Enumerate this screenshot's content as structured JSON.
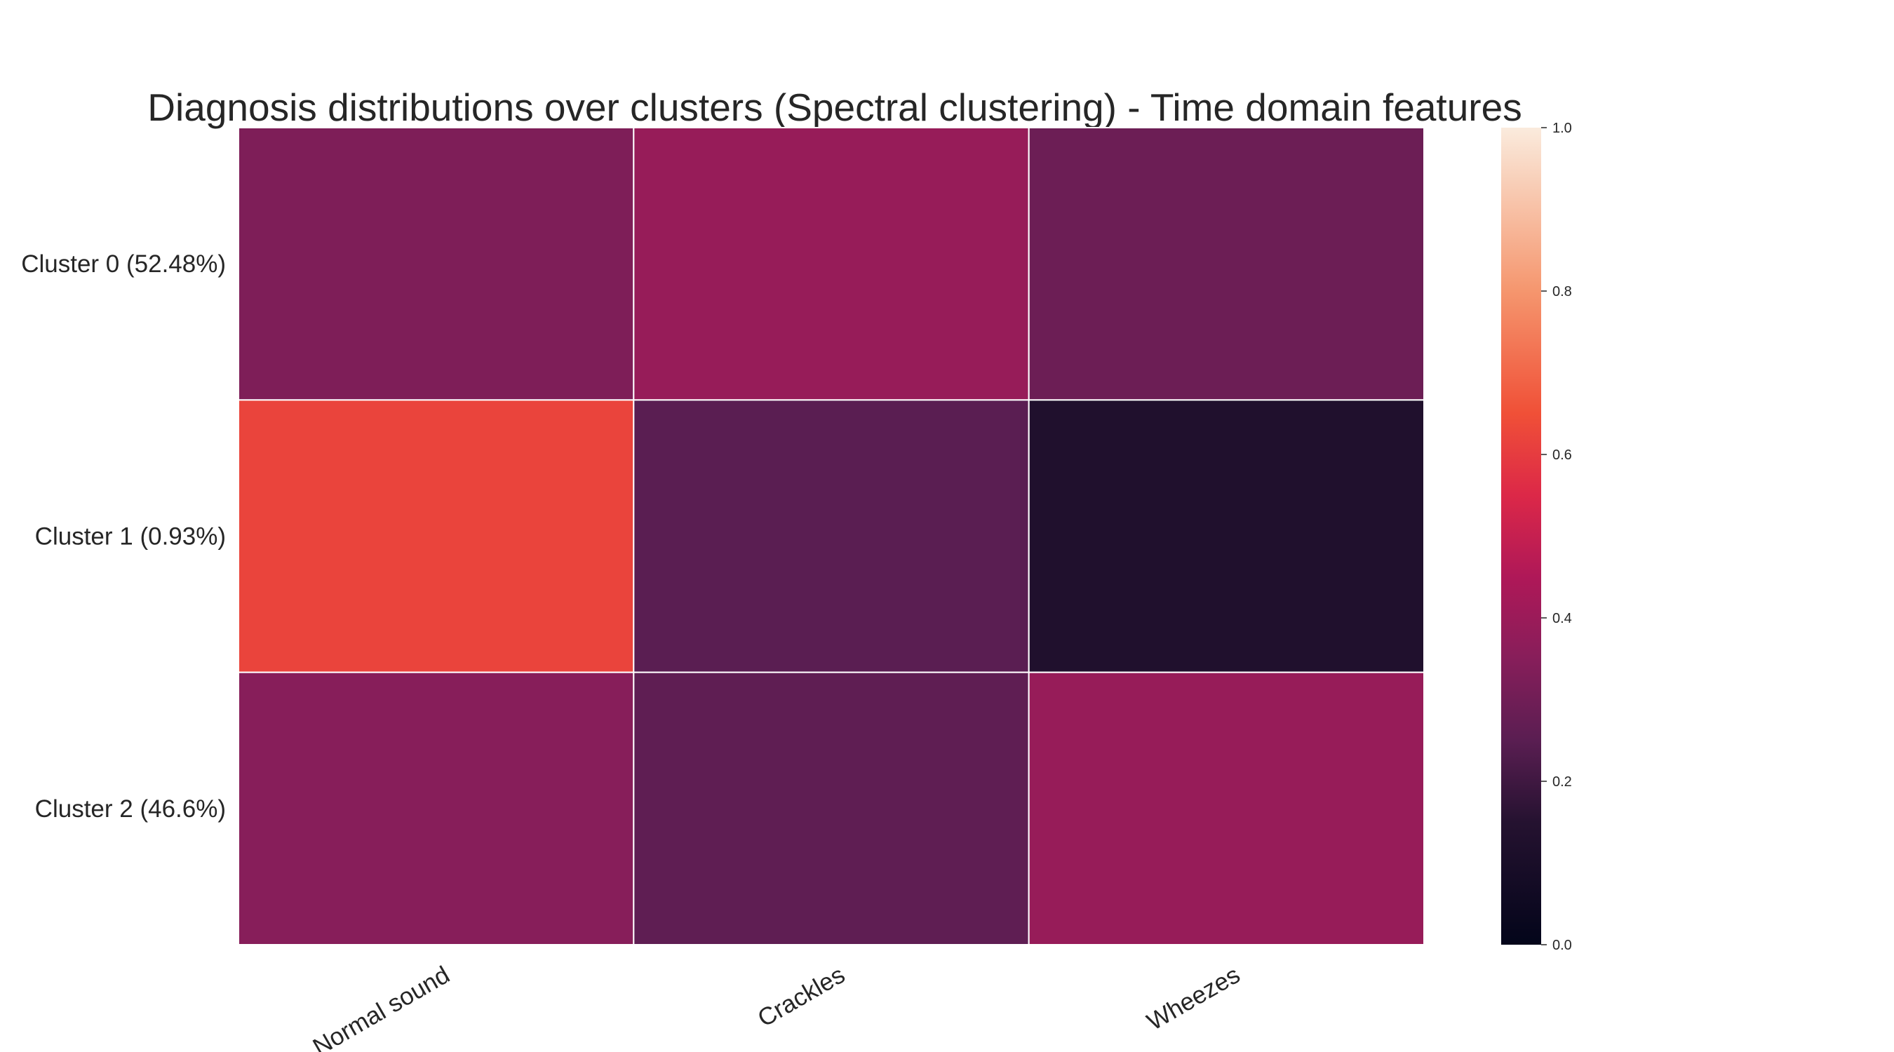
{
  "chart_data": {
    "type": "heatmap",
    "title": "Diagnosis distributions over clusters (Spectral clustering) - Time domain features",
    "xlabel": "",
    "ylabel": "",
    "x_categories": [
      "Normal sound",
      "Crackles",
      "Wheezes"
    ],
    "y_categories": [
      "Cluster 0 (52.48%)",
      "Cluster 1 (0.93%)",
      "Cluster 2 (46.6%)"
    ],
    "values": [
      [
        0.33,
        0.39,
        0.29
      ],
      [
        0.62,
        0.25,
        0.13
      ],
      [
        0.35,
        0.26,
        0.39
      ]
    ],
    "colorbar": {
      "range": [
        0.0,
        1.0
      ],
      "ticks": [
        "0.0",
        "0.2",
        "0.4",
        "0.6",
        "0.8",
        "1.0"
      ],
      "colormap": "rocket",
      "position": "right"
    },
    "cell_border_color": "#ffffff",
    "grid": false
  }
}
